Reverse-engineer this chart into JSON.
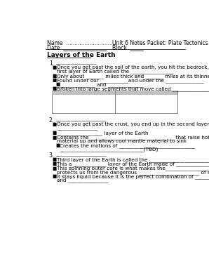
{
  "title_left": "Name  ...............................",
  "title_left2": "Date  ________________",
  "title_right": "Unit 6 Notes Packet: Plate Tectonics",
  "title_right2": "Block  _____",
  "section_title": "Layers of the Earth",
  "bg_color": "#ffffff",
  "text_color": "#000000",
  "font_size": 5.2,
  "title_font_size": 5.5,
  "section_font_size": 6.5,
  "num_font_size": 5.5,
  "table_header_color": "#c0c0c0",
  "table_border_color": "#808080"
}
